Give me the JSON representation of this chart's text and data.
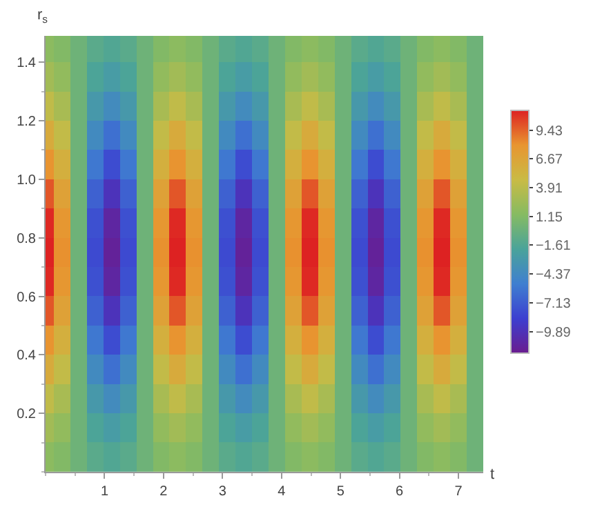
{
  "chart_data": {
    "type": "heatmap",
    "xlabel": "t",
    "ylabel": "r$_{s}$",
    "x": [
      0,
      0.28,
      0.56,
      0.84,
      1.12,
      1.4,
      1.68,
      1.96,
      2.24,
      2.52,
      2.8,
      3.08,
      3.36,
      3.64,
      3.92,
      4.2,
      4.48,
      4.76,
      5.04,
      5.32,
      5.6,
      5.88,
      6.16,
      6.44,
      6.72,
      7.0,
      7.28
    ],
    "y": [
      0.05,
      0.15,
      0.25,
      0.35,
      0.45,
      0.55,
      0.65,
      0.75,
      0.85,
      0.95,
      1.05,
      1.15,
      1.25,
      1.35,
      1.45
    ],
    "cells": [
      [
        1.6,
        1.1,
        0,
        -1.1,
        -1.6,
        -1.1,
        0,
        1.1,
        1.6,
        1.1,
        0,
        -1.1,
        -1.6,
        -1.1,
        0,
        1.1,
        1.6,
        1.1,
        0,
        -1.1,
        -1.6,
        -1.1,
        0,
        1.1,
        1.6,
        1.1,
        0
      ],
      [
        2.7,
        1.9,
        0,
        -1.9,
        -2.7,
        -1.9,
        0,
        1.9,
        2.7,
        1.9,
        0,
        -1.9,
        -2.7,
        -1.9,
        0,
        1.9,
        2.7,
        1.9,
        0,
        -1.9,
        -2.7,
        -1.9,
        0,
        1.9,
        2.7,
        1.9,
        0
      ],
      [
        4.2,
        3.0,
        0,
        -3.0,
        -4.2,
        -3.0,
        0,
        3.0,
        4.2,
        3.0,
        0,
        -3.0,
        -4.2,
        -3.0,
        0,
        3.0,
        4.2,
        3.0,
        0,
        -3.0,
        -4.2,
        -3.0,
        0,
        3.0,
        4.2,
        3.0,
        0
      ],
      [
        6.1,
        4.3,
        0,
        -4.3,
        -6.1,
        -4.3,
        0,
        4.3,
        6.1,
        4.3,
        0,
        -4.3,
        -6.1,
        -4.3,
        0,
        4.3,
        6.1,
        4.3,
        0,
        -4.3,
        -6.1,
        -4.3,
        0,
        4.3,
        6.1,
        4.3,
        0
      ],
      [
        8.0,
        5.7,
        0,
        -5.7,
        -8.0,
        -5.7,
        0,
        5.7,
        8.0,
        5.7,
        0,
        -5.7,
        -8.0,
        -5.7,
        0,
        5.7,
        8.0,
        5.7,
        0,
        -5.7,
        -8.0,
        -5.7,
        0,
        5.7,
        8.0,
        5.7,
        0
      ],
      [
        9.8,
        6.9,
        0,
        -6.9,
        -9.8,
        -6.9,
        0,
        6.9,
        9.8,
        6.9,
        0,
        -6.9,
        -9.8,
        -6.9,
        0,
        6.9,
        9.8,
        6.9,
        0,
        -6.9,
        -9.8,
        -6.9,
        0,
        6.9,
        9.8,
        6.9,
        0
      ],
      [
        11.1,
        7.8,
        0,
        -7.8,
        -11.1,
        -7.8,
        0,
        7.8,
        11.1,
        7.8,
        0,
        -7.8,
        -11.1,
        -7.8,
        0,
        7.8,
        11.1,
        7.8,
        0,
        -7.8,
        -11.1,
        -7.8,
        0,
        7.8,
        11.1,
        7.8,
        0
      ],
      [
        11.3,
        8.1,
        0,
        -8.1,
        -11.5,
        -8.1,
        0,
        8.1,
        11.3,
        8.1,
        0,
        -8.1,
        -11.5,
        -8.1,
        0,
        8.1,
        11.3,
        8.1,
        0,
        -8.1,
        -11.5,
        -8.1,
        0,
        8.1,
        11.3,
        8.1,
        0
      ],
      [
        11.1,
        7.8,
        0,
        -7.8,
        -11.1,
        -7.8,
        0,
        7.8,
        11.1,
        7.8,
        0,
        -7.8,
        -11.1,
        -7.8,
        0,
        7.8,
        11.1,
        7.8,
        0,
        -7.8,
        -11.1,
        -7.8,
        0,
        7.8,
        11.1,
        7.8,
        0
      ],
      [
        9.8,
        6.9,
        0,
        -6.9,
        -9.8,
        -6.9,
        0,
        6.9,
        9.8,
        6.9,
        0,
        -6.9,
        -9.8,
        -6.9,
        0,
        6.9,
        9.8,
        6.9,
        0,
        -6.9,
        -9.8,
        -6.9,
        0,
        6.9,
        9.8,
        6.9,
        0
      ],
      [
        8.0,
        5.7,
        0,
        -5.7,
        -8.0,
        -5.7,
        0,
        5.7,
        8.0,
        5.7,
        0,
        -5.7,
        -8.0,
        -5.7,
        0,
        5.7,
        8.0,
        5.7,
        0,
        -5.7,
        -8.0,
        -5.7,
        0,
        5.7,
        8.0,
        5.7,
        0
      ],
      [
        6.1,
        4.3,
        0,
        -4.3,
        -6.1,
        -4.3,
        0,
        4.3,
        6.1,
        4.3,
        0,
        -4.3,
        -6.1,
        -4.3,
        0,
        4.3,
        6.1,
        4.3,
        0,
        -4.3,
        -6.1,
        -4.3,
        0,
        4.3,
        6.1,
        4.3,
        0
      ],
      [
        4.2,
        3.0,
        0,
        -3.0,
        -4.2,
        -3.0,
        0,
        3.0,
        4.2,
        3.0,
        0,
        -3.0,
        -4.2,
        -3.0,
        0,
        3.0,
        4.2,
        3.0,
        0,
        -3.0,
        -4.2,
        -3.0,
        0,
        3.0,
        4.2,
        3.0,
        0
      ],
      [
        2.7,
        1.9,
        0,
        -1.9,
        -2.7,
        -1.9,
        0,
        1.9,
        2.7,
        1.9,
        0,
        -1.9,
        -2.7,
        -1.9,
        0,
        1.9,
        2.7,
        1.9,
        0,
        -1.9,
        -2.7,
        -1.9,
        0,
        1.9,
        2.7,
        1.9,
        0
      ],
      [
        1.6,
        1.1,
        0,
        -1.1,
        -1.6,
        -1.1,
        0,
        1.1,
        1.6,
        1.1,
        0,
        -1.1,
        -1.6,
        -1.1,
        0,
        1.1,
        1.6,
        1.1,
        0,
        -1.1,
        -1.6,
        -1.1,
        0,
        1.1,
        1.6,
        1.1,
        0
      ]
    ],
    "colors": [
      "#6a1d8f",
      "#3c3fd0",
      "#3f7fd0",
      "#4aa39a",
      "#86bb62",
      "#c9bb45",
      "#e89530",
      "#dd2222"
    ],
    "clim": [
      -12.0,
      11.3
    ],
    "cticks": [
      {
        "value": -9.89,
        "label": "−9.89"
      },
      {
        "value": -7.13,
        "label": "−7.13"
      },
      {
        "value": -4.37,
        "label": "−4.37"
      },
      {
        "value": -1.61,
        "label": "−1.61"
      },
      1.15,
      3.91,
      6.67,
      9.43
    ],
    "xlim": [
      0,
      7.42
    ],
    "xticks": [
      1,
      2,
      3,
      4,
      5,
      6,
      7
    ],
    "ylim": [
      0,
      1.49
    ],
    "yticks": [
      0.2,
      0.4,
      0.6,
      0.8,
      {
        "value": 1,
        "label": "1.0"
      },
      1.2,
      1.4
    ]
  }
}
